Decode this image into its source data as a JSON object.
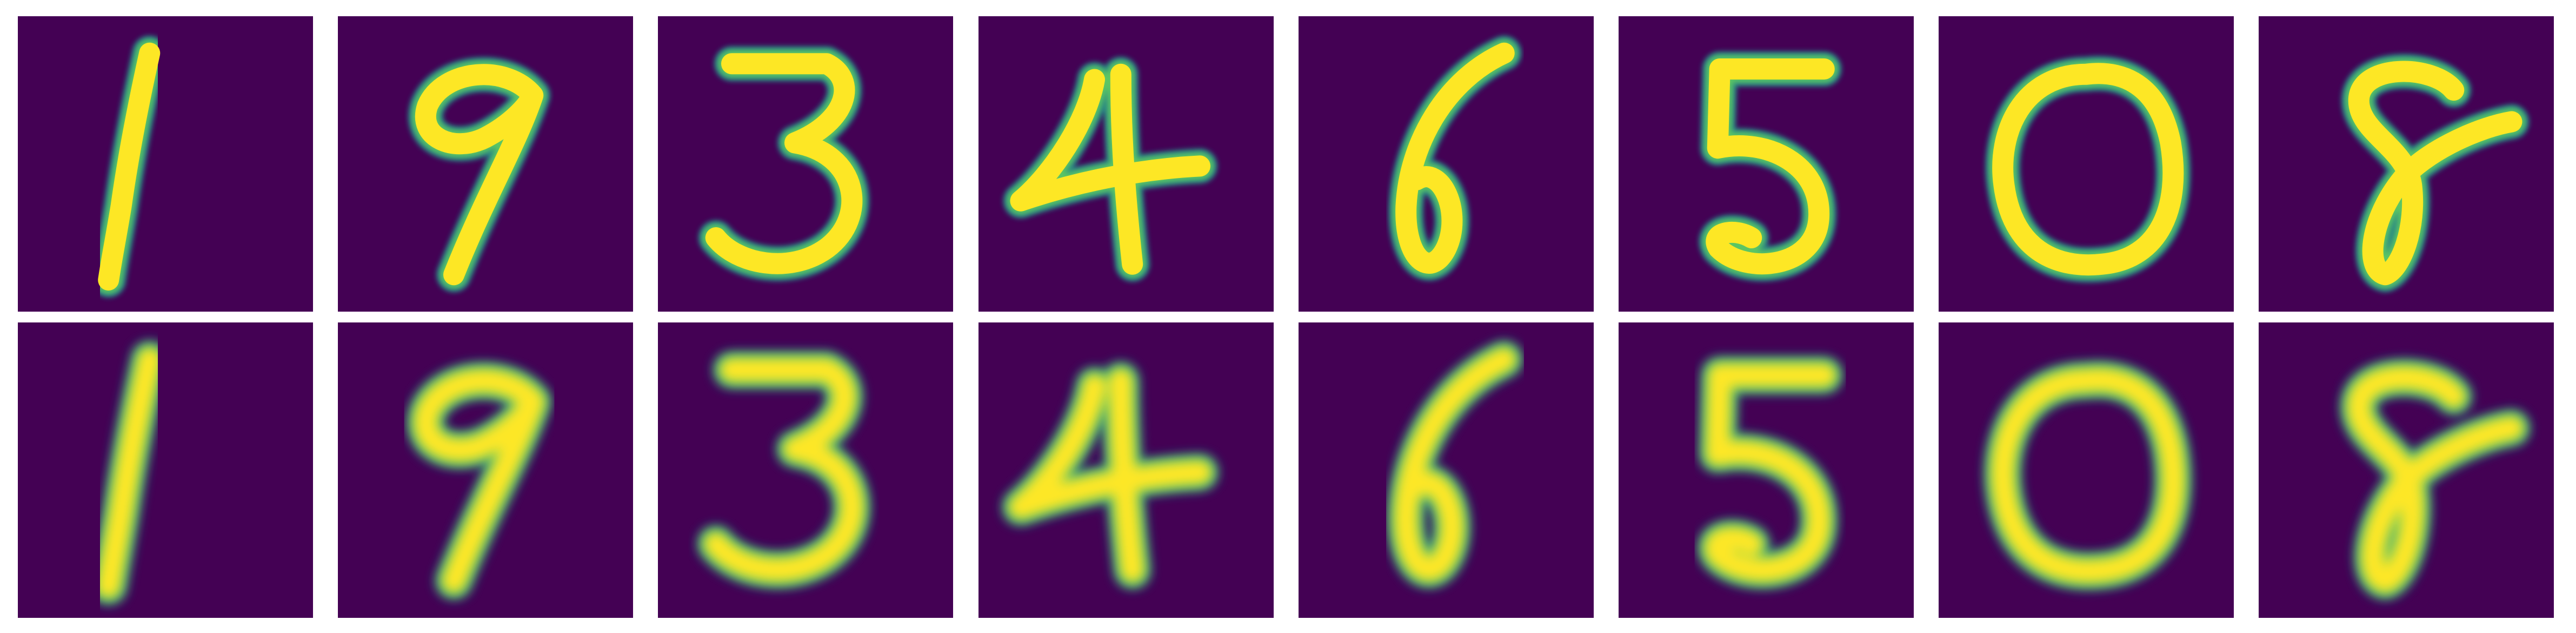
{
  "figure": {
    "rows": [
      {
        "row_kind": "input",
        "digits": [
          "1",
          "9",
          "3",
          "4",
          "6",
          "5",
          "0",
          "8"
        ]
      },
      {
        "row_kind": "reconstruction",
        "digits": [
          "1",
          "9",
          "3",
          "4",
          "6",
          "5",
          "0",
          "8"
        ]
      }
    ],
    "colormap": {
      "background": "#440154",
      "edge_outer": "#21918c",
      "edge_inner": "#5ec962",
      "stroke_core": "#fde725"
    }
  }
}
